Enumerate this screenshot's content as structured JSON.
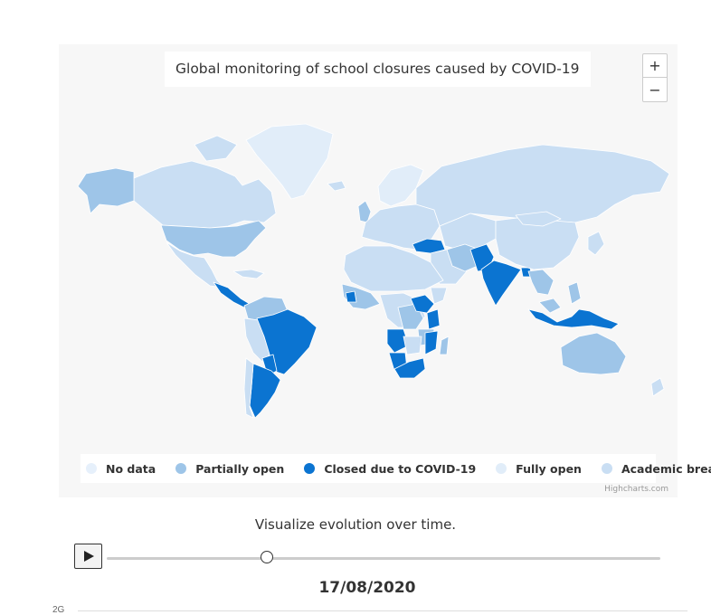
{
  "map": {
    "title": "Global monitoring of school closures caused by COVID-19",
    "zoom_in_label": "+",
    "zoom_out_label": "−",
    "credits": "Highcharts.com",
    "legend": [
      {
        "label": "No data",
        "color": "#e6f0fb"
      },
      {
        "label": "Partially open",
        "color": "#9ec5e8"
      },
      {
        "label": "Closed due to COVID-19",
        "color": "#0b74d1"
      },
      {
        "label": "Fully open",
        "color": "#e1edf9"
      },
      {
        "label": "Academic break",
        "color": "#c9def3"
      }
    ],
    "colors": {
      "background": "#f7f7f7",
      "border": "#ffffff"
    }
  },
  "timeline": {
    "caption": "Visualize evolution over time.",
    "date": "17/08/2020",
    "progress": 0.29
  },
  "footer": {
    "label": "2G"
  }
}
